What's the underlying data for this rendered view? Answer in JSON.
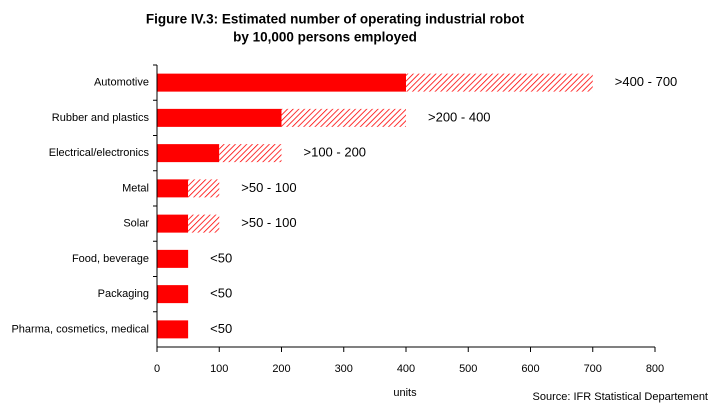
{
  "chart_data": {
    "type": "bar",
    "title": [
      "Figure IV.3: Estimated number of operating industrial robot",
      "by 10,000 persons employed"
    ],
    "categories": [
      "Automotive",
      "Rubber and plastics",
      "Electrical/electronics",
      "Metal",
      "Solar",
      "Food, beverage",
      "Packaging",
      "Pharma, cosmetics, medical"
    ],
    "series": [
      {
        "color": "#ff0000",
        "values": [
          400,
          200,
          100,
          50,
          50,
          50,
          50,
          50
        ],
        "value_labels": [
          ">400 - 700",
          ">200 - 400",
          ">100 - 200",
          ">50 - 100",
          ">50 - 100",
          "<50",
          "<50",
          "<50"
        ]
      },
      {
        "color": "#ff0000",
        "hatched": true,
        "values": [
          300,
          200,
          100,
          50,
          50,
          null,
          null,
          null
        ]
      }
    ],
    "xlim": [
      0,
      800
    ],
    "xticks": [
      0,
      100,
      200,
      300,
      400,
      500,
      600,
      700,
      800
    ],
    "x_label": "units",
    "source": "Source: IFR Statistical Departement"
  }
}
